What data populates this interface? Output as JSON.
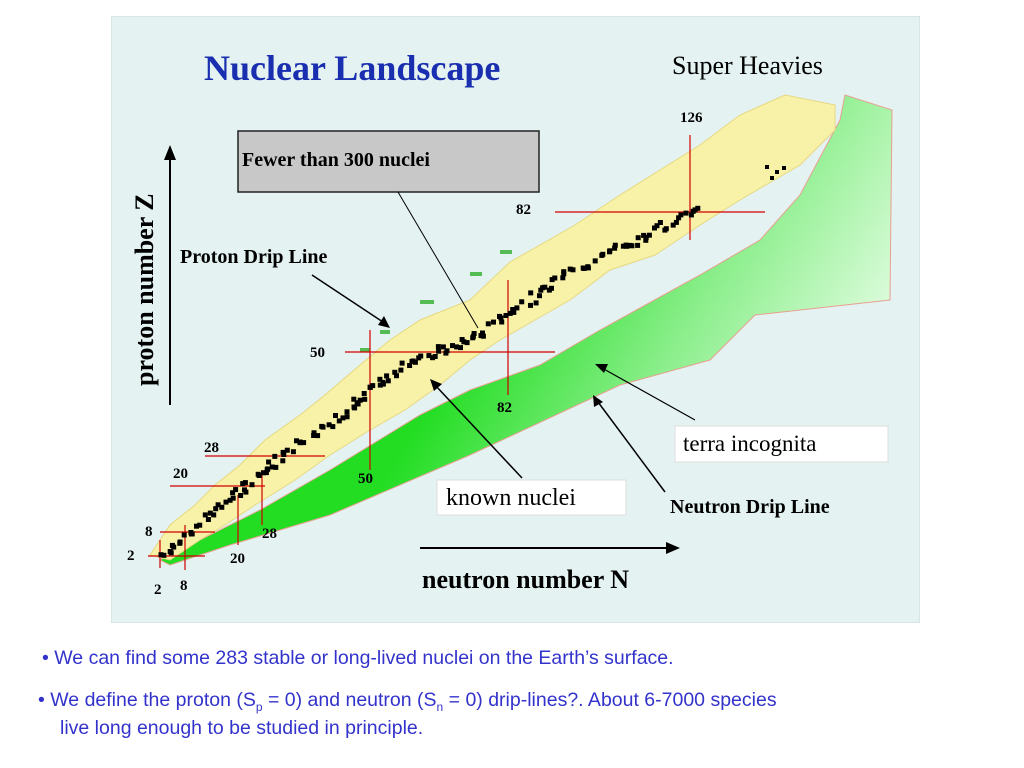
{
  "figure": {
    "title": "Nuclear Landscape",
    "super_heavies": "Super Heavies",
    "fewer_label": "Fewer than 300 nuclei",
    "proton_drip_label": "Proton Drip Line",
    "neutron_drip_label": "Neutron Drip Line",
    "terra_label": "terra incognita",
    "known_label": "known nuclei",
    "y_axis_label": "proton number Z",
    "x_axis_label": "neutron number N",
    "magic": {
      "z2": "2",
      "z8": "8",
      "z20": "20",
      "z28": "28",
      "z50": "50",
      "z82": "82",
      "n126": "126",
      "n2": "2",
      "n8": "8",
      "n20": "20",
      "n28": "28",
      "n50": "50",
      "n82": "82"
    },
    "colors": {
      "background": "#e4f2f2",
      "known_region": "#f8f2a8",
      "neutron_rich": "#22dd22",
      "stable": "#000000",
      "magic_lines": "#d00000",
      "title": "#1a2fb0"
    }
  },
  "bullets": {
    "b1_bullet": "•",
    "b1_text": "We can find some 283 stable or long-lived nuclei on the Earth’s surface.",
    "b2_bullet": "•",
    "b2_part1": "We define the proton (S",
    "b2_sub_p": "p",
    "b2_part2": " = 0) and neutron (S",
    "b2_sub_n": "n",
    "b2_part3": " = 0) drip-lines?. About 6-7000 species",
    "b3_text": "live long enough to be studied in principle."
  }
}
